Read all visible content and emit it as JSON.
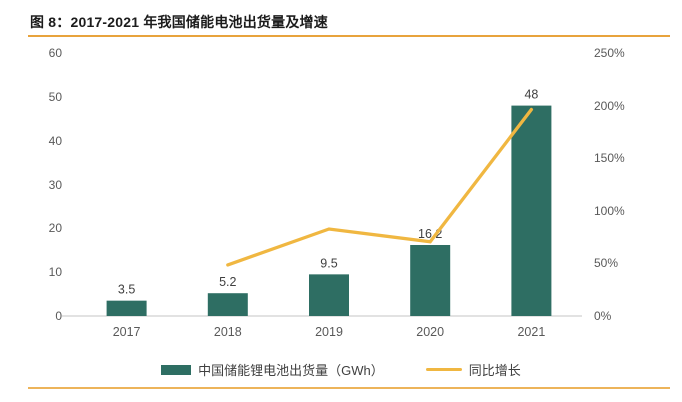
{
  "header": {
    "title": "图 8：2017-2021 年我国储能电池出货量及增速"
  },
  "chart_data": {
    "type": "bar+line",
    "title": "图 8：2017-2021 年我国储能电池出货量及增速",
    "categories": [
      "2017",
      "2018",
      "2019",
      "2020",
      "2021"
    ],
    "series": [
      {
        "name": "中国储能锂电池出货量（GWh）",
        "type": "bar",
        "axis": "left",
        "values": [
          3.5,
          5.2,
          9.5,
          16.2,
          48
        ],
        "labels": [
          "3.5",
          "5.2",
          "9.5",
          "16.2",
          "48"
        ],
        "color": "#2E6E63"
      },
      {
        "name": "同比增长",
        "type": "line",
        "axis": "right",
        "values_pct": [
          null,
          48.6,
          82.7,
          70.5,
          196.3
        ],
        "color": "#F0B741"
      }
    ],
    "left_axis": {
      "ticks": [
        0,
        10,
        20,
        30,
        40,
        50,
        60
      ],
      "min": 0,
      "max": 60
    },
    "right_axis": {
      "tick_labels": [
        "0%",
        "50%",
        "100%",
        "150%",
        "200%",
        "250%"
      ],
      "tick_values_pct": [
        0,
        50,
        100,
        150,
        200,
        250
      ],
      "min_pct": 0,
      "max_pct": 250
    },
    "grid": false,
    "legend_position": "bottom-center"
  },
  "colors": {
    "bar": "#2E6E63",
    "line": "#F0B741",
    "rule_top": "#E8A33C",
    "rule_bottom": "#EDB45A",
    "axis_text": "#595959",
    "value_label": "#404040",
    "baseline": "#D9D9D9"
  }
}
